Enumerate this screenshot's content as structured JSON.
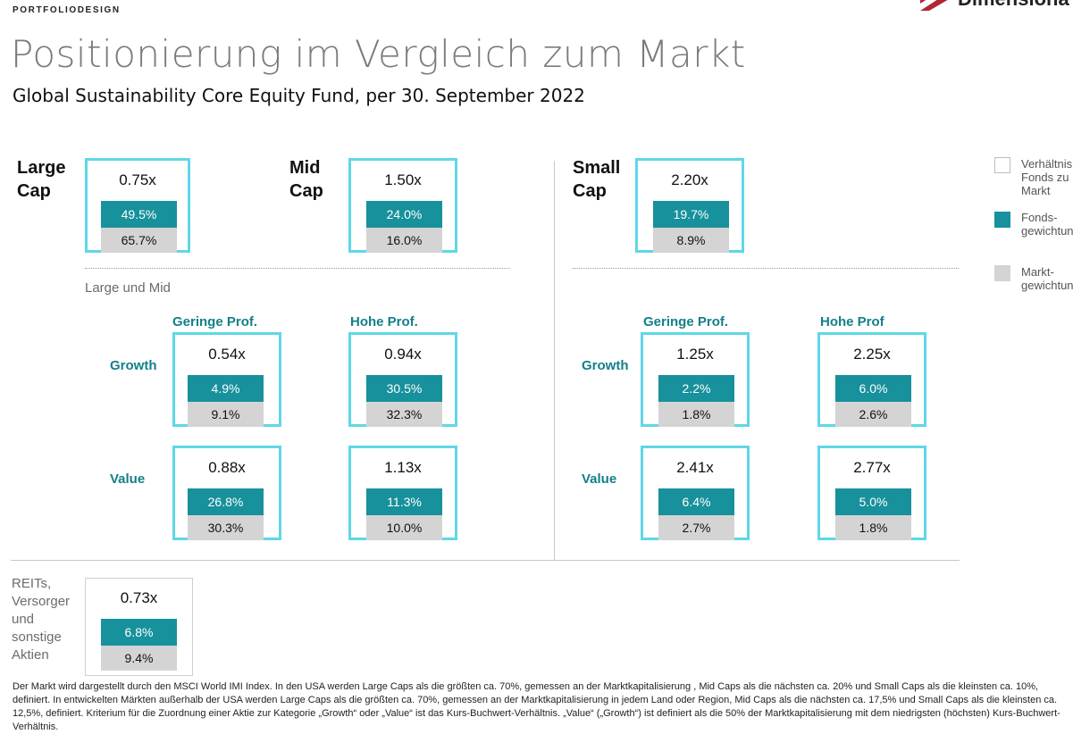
{
  "header": {
    "eyebrow": "PORTFOLIODESIGN",
    "title": "Positionierung im Vergleich zum Markt",
    "subtitle": "Global Sustainability Core Equity Fund, per 30. September 2022",
    "logo_text": "Dimensiona"
  },
  "colors": {
    "box_border": "#5fd7e8",
    "fund": "#17919b",
    "market": "#d4d4d4",
    "accent_text": "#12808a"
  },
  "caps": {
    "large": {
      "label": "Large\nCap",
      "ratio": "0.75x",
      "fund": "49.5%",
      "market": "65.7%"
    },
    "mid": {
      "label": "Mid\nCap",
      "ratio": "1.50x",
      "fund": "24.0%",
      "market": "16.0%"
    },
    "small": {
      "label": "Small\nCap",
      "ratio": "2.20x",
      "fund": "19.7%",
      "market": "8.9%"
    }
  },
  "large_mid": {
    "section_label": "Large und Mid",
    "col_low": "Geringe Prof.",
    "col_high": "Hohe Prof.",
    "row_growth": "Growth",
    "row_value": "Value",
    "growth_low": {
      "ratio": "0.54x",
      "fund": "4.9%",
      "market": "9.1%"
    },
    "growth_high": {
      "ratio": "0.94x",
      "fund": "30.5%",
      "market": "32.3%"
    },
    "value_low": {
      "ratio": "0.88x",
      "fund": "26.8%",
      "market": "30.3%"
    },
    "value_high": {
      "ratio": "1.13x",
      "fund": "11.3%",
      "market": "10.0%"
    }
  },
  "small_grid": {
    "col_low": "Geringe Prof.",
    "col_high": "Hohe Prof",
    "row_growth": "Growth",
    "row_value": "Value",
    "growth_low": {
      "ratio": "1.25x",
      "fund": "2.2%",
      "market": "1.8%"
    },
    "growth_high": {
      "ratio": "2.25x",
      "fund": "6.0%",
      "market": "2.6%"
    },
    "value_low": {
      "ratio": "2.41x",
      "fund": "6.4%",
      "market": "2.7%"
    },
    "value_high": {
      "ratio": "2.77x",
      "fund": "5.0%",
      "market": "1.8%"
    }
  },
  "reits": {
    "label": "REITs,\nVersorger\nund\nsonstige\nAktien",
    "ratio": "0.73x",
    "fund": "6.8%",
    "market": "9.4%"
  },
  "legend": {
    "ratio": "Verhältnis\nFonds zu\nMarkt",
    "fund": "Fonds-\ngewichtung",
    "market": "Markt-\ngewichtung"
  },
  "footnote": "Der Markt wird dargestellt durch den MSCI World IMI Index. In den USA werden Large Caps als die größten ca. 70%, gemessen an der Marktkapitalisierung , Mid Caps als die nächsten ca. 20% und Small Caps als die kleinsten ca. 10%, definiert. In entwickelten Märkten außerhalb der USA werden Large Caps als die größten ca. 70%, gemessen an der Marktkapitalisierung in jedem Land oder Region, Mid Caps als die nächsten ca. 17,5% und Small Caps als die kleinsten ca. 12,5%, definiert. Kriterium für die Zuordnung einer Aktie zur Kategorie „Growth“ oder „Value“ ist das Kurs-Buchwert-Verhältnis. „Value“ („Growth“) ist definiert als die 50% der Marktkapitalisierung mit dem niedrigsten (höchsten) Kurs-Buchwert-Verhältnis."
}
